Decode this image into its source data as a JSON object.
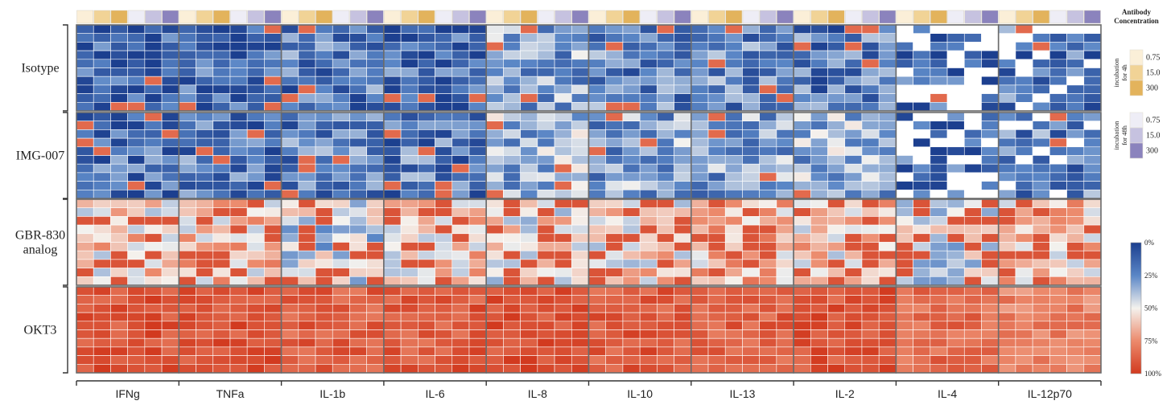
{
  "chart_data": {
    "type": "heatmap",
    "title": "",
    "groups": [
      "Isotype",
      "IMG-007",
      "GBR-830\nanalog",
      "OKT3"
    ],
    "cytokines": [
      "IFNg",
      "TNFa",
      "IL-1b",
      "IL-6",
      "IL-8",
      "IL-10",
      "IL-13",
      "IL-2",
      "IL-4",
      "IL-12p70"
    ],
    "legend_antibody": {
      "title": "Antibody\nConcentration",
      "incubation_4h_label": "incubation\nfor 4h",
      "incubation_48h_label": "incubation\nfor 48h",
      "levels": [
        "0.75",
        "15.0",
        "300"
      ],
      "colors_4h": [
        "#fbefd8",
        "#f1d396",
        "#e3b35c"
      ],
      "colors_48h": [
        "#eeedf6",
        "#c6c2e0",
        "#8b83bd"
      ]
    },
    "colorbar": {
      "ticks": [
        "0%",
        "25%",
        "50%",
        "75%",
        "100%"
      ],
      "colors": [
        "#1c3f8f",
        "#5a86c6",
        "#f4f2ee",
        "#ec8a6c",
        "#d23a1f"
      ]
    },
    "group_mean_percent": {
      "Isotype": [
        12,
        14,
        20,
        16,
        30,
        22,
        24,
        20,
        12,
        18
      ],
      "IMG-007": [
        16,
        18,
        22,
        20,
        34,
        30,
        30,
        34,
        14,
        22
      ],
      "GBR-830\nanalog": [
        58,
        60,
        44,
        58,
        52,
        55,
        62,
        58,
        48,
        62
      ],
      "OKT3": [
        92,
        93,
        88,
        90,
        94,
        90,
        88,
        92,
        84,
        78
      ]
    }
  }
}
